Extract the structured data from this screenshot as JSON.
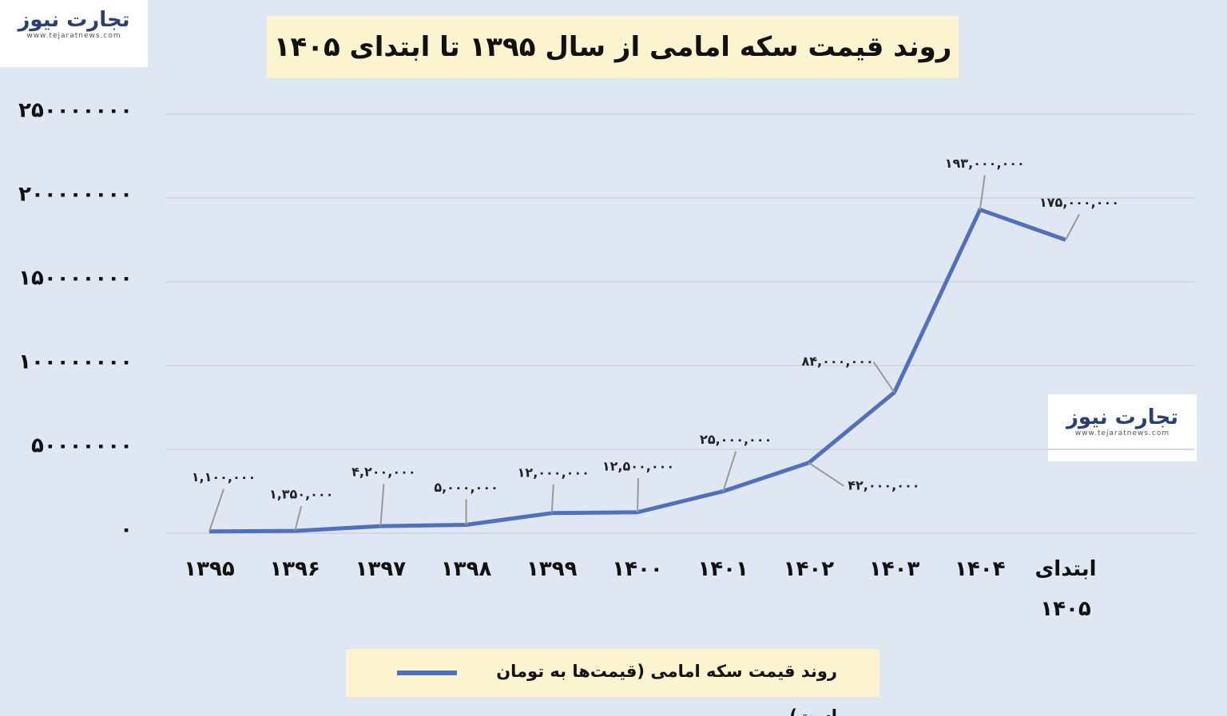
{
  "logo": {
    "name": "تجارت نیوز",
    "url": "www.tejaratnews.com"
  },
  "chart_data": {
    "type": "line",
    "title": "روند قیمت سکه امامی از سال ۱۳۹۵ تا ابتدای ۱۴۰۵",
    "categories": [
      "۱۳۹۵",
      "۱۳۹۶",
      "۱۳۹۷",
      "۱۳۹۸",
      "۱۳۹۹",
      "۱۴۰۰",
      "۱۴۰۱",
      "۱۴۰۲",
      "۱۴۰۳",
      "۱۴۰۴",
      "ابتدای ۱۴۰۵"
    ],
    "series": [
      {
        "name": "روند قیمت سکه امامی (قیمت‌ها به تومان است)",
        "color": "#4f6fc1",
        "values": [
          1100000,
          1350000,
          4200000,
          5000000,
          12000000,
          12500000,
          25000000,
          42000000,
          84000000,
          193000000,
          175000000
        ],
        "value_labels": [
          "۱,۱۰۰,۰۰۰",
          "۱,۳۵۰,۰۰۰",
          "۴,۲۰۰,۰۰۰",
          "۵,۰۰۰,۰۰۰",
          "۱۲,۰۰۰,۰۰۰",
          "۱۲,۵۰۰,۰۰۰",
          "۲۵,۰۰۰,۰۰۰",
          "۴۲,۰۰۰,۰۰۰",
          "۸۴,۰۰۰,۰۰۰",
          "۱۹۳,۰۰۰,۰۰۰",
          "۱۷۵,۰۰۰,۰۰۰"
        ]
      }
    ],
    "ylim": [
      0,
      250000000
    ],
    "yticks": [
      {
        "value": 0,
        "label": "۰"
      },
      {
        "value": 50000000,
        "label": "۵۰۰۰۰۰۰۰"
      },
      {
        "value": 100000000,
        "label": "۱۰۰۰۰۰۰۰۰"
      },
      {
        "value": 150000000,
        "label": "۱۵۰۰۰۰۰۰۰"
      },
      {
        "value": 200000000,
        "label": "۲۰۰۰۰۰۰۰۰"
      },
      {
        "value": 250000000,
        "label": "۲۵۰۰۰۰۰۰۰"
      }
    ],
    "grid": true
  }
}
